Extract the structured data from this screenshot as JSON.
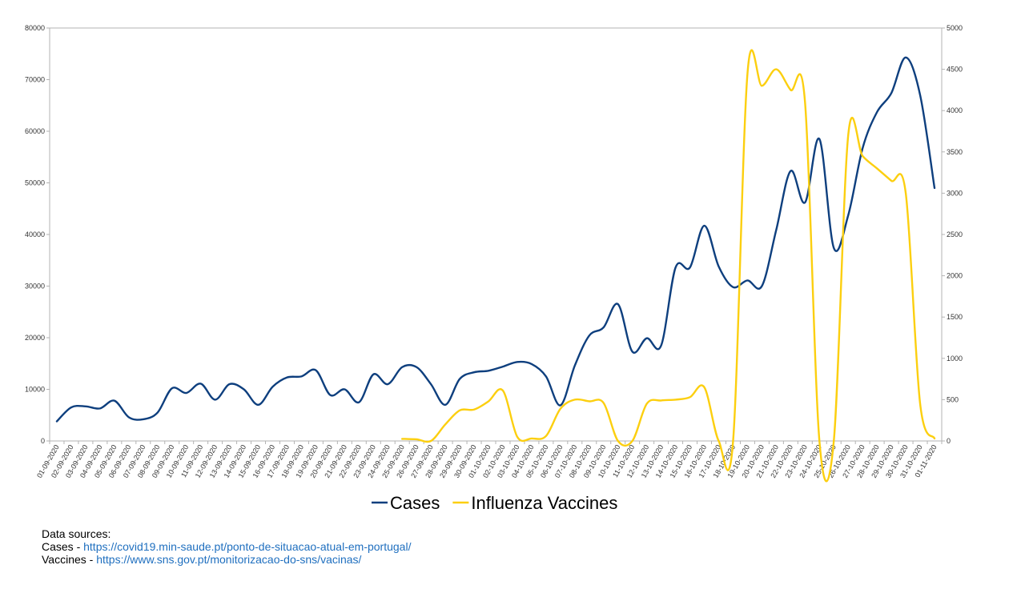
{
  "chart_data": {
    "type": "line",
    "title": "",
    "xlabel": "",
    "ylabel": "",
    "x": [
      "01-09-2020",
      "02-09-2020",
      "03-09-2020",
      "04-09-2020",
      "05-09-2020",
      "06-09-2020",
      "07-09-2020",
      "08-09-2020",
      "09-09-2020",
      "10-09-2020",
      "11-09-2020",
      "12-09-2020",
      "13-09-2020",
      "14-09-2020",
      "15-09-2020",
      "16-09-2020",
      "17-09-2020",
      "18-09-2020",
      "19-09-2020",
      "20-09-2020",
      "21-09-2020",
      "22-09-2020",
      "23-09-2020",
      "24-09-2020",
      "25-09-2020",
      "26-09-2020",
      "27-09-2020",
      "28-09-2020",
      "29-09-2020",
      "30-09-2020",
      "01-10-2020",
      "02-10-2020",
      "03-10-2020",
      "04-10-2020",
      "05-10-2020",
      "06-10-2020",
      "07-10-2020",
      "08-10-2020",
      "09-10-2020",
      "10-10-2020",
      "11-10-2020",
      "12-10-2020",
      "13-10-2020",
      "14-10-2020",
      "15-10-2020",
      "16-10-2020",
      "17-10-2020",
      "18-10-2020",
      "19-10-2020",
      "20-10-2020",
      "21-10-2020",
      "22-10-2020",
      "23-10-2020",
      "24-10-2020",
      "25-10-2020",
      "26-10-2020",
      "27-10-2020",
      "28-10-2020",
      "29-10-2020",
      "30-10-2020",
      "31-10-2020",
      "01-11-2020"
    ],
    "y_left_ticks": [
      "0",
      "10000",
      "20000",
      "30000",
      "40000",
      "50000",
      "60000",
      "70000",
      "80000"
    ],
    "y_right_ticks": [
      "0",
      "500",
      "1000",
      "1500",
      "2000",
      "2500",
      "3000",
      "3500",
      "4000",
      "4500",
      "5000"
    ],
    "ylim_left": [
      0,
      80000
    ],
    "ylim_right": [
      0,
      5000
    ],
    "grid": false,
    "legend_position": "bottom",
    "series": [
      {
        "name": "Cases",
        "axis": "left",
        "color": "#0e3f7e",
        "values": [
          3800,
          6500,
          6700,
          6300,
          7800,
          4600,
          4200,
          5500,
          10200,
          9300,
          11100,
          8000,
          11000,
          10000,
          7000,
          10500,
          12300,
          12500,
          13700,
          8900,
          10000,
          7500,
          12900,
          11000,
          14300,
          14300,
          11000,
          7000,
          12000,
          13300,
          13600,
          14400,
          15300,
          14900,
          12500,
          6900,
          14600,
          20400,
          22000,
          26500,
          17300,
          19900,
          18500,
          33600,
          33600,
          41700,
          33800,
          29800,
          31100,
          30000,
          40900,
          52300,
          46200,
          58500,
          37400,
          43700,
          56700,
          63700,
          67400,
          74300,
          67000,
          49000
        ]
      },
      {
        "name": "Influenza Vaccines",
        "axis": "right",
        "color": "#fccf0f",
        "values": [
          null,
          null,
          null,
          null,
          null,
          null,
          null,
          null,
          null,
          null,
          null,
          null,
          null,
          null,
          null,
          null,
          null,
          null,
          null,
          null,
          null,
          null,
          null,
          null,
          25,
          20,
          0,
          200,
          370,
          380,
          480,
          610,
          50,
          30,
          60,
          390,
          500,
          480,
          460,
          0,
          0,
          450,
          490,
          500,
          530,
          650,
          0,
          0,
          4450,
          4300,
          4500,
          4250,
          4100,
          0,
          0,
          3700,
          3450,
          3300,
          3150,
          3000,
          450,
          30
        ]
      }
    ]
  },
  "sources": {
    "heading": "Data sources:",
    "cases_label": "Cases - ",
    "cases_url": "https://covid19.min-saude.pt/ponto-de-situacao-atual-em-portugal/",
    "vaccines_label": "Vaccines - ",
    "vaccines_url": "https://www.sns.gov.pt/monitorizacao-do-sns/vacinas/"
  }
}
